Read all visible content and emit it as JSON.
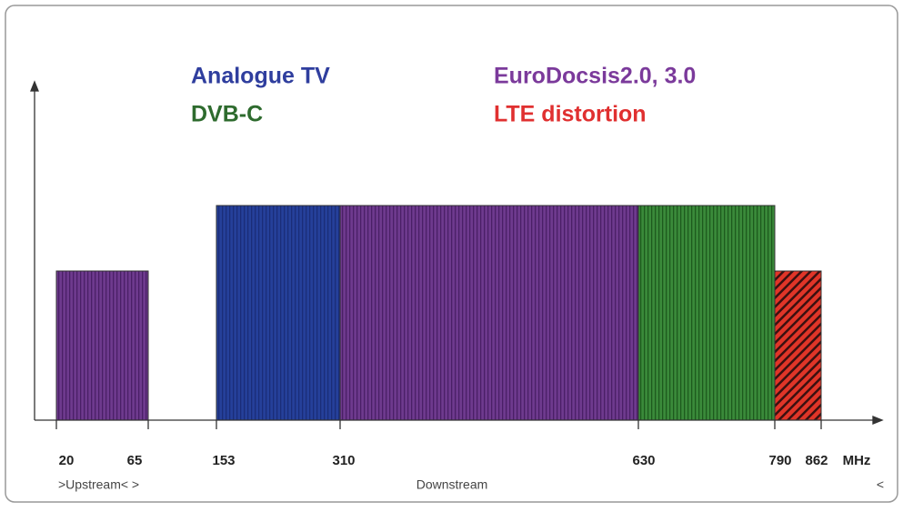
{
  "legend": [
    {
      "label": "Analogue TV"
    },
    {
      "label": "DVB-C"
    },
    {
      "label": "EuroDocsis2.0, 3.0"
    },
    {
      "label": "LTE distortion"
    }
  ],
  "axis": {
    "ticks": [
      "20",
      "65",
      "153",
      "310",
      "630",
      "790",
      "862"
    ],
    "unit": "MHz"
  },
  "bands": {
    "upstream": ">Upstream< >",
    "downstream": "Downstream",
    "end": "<"
  }
}
